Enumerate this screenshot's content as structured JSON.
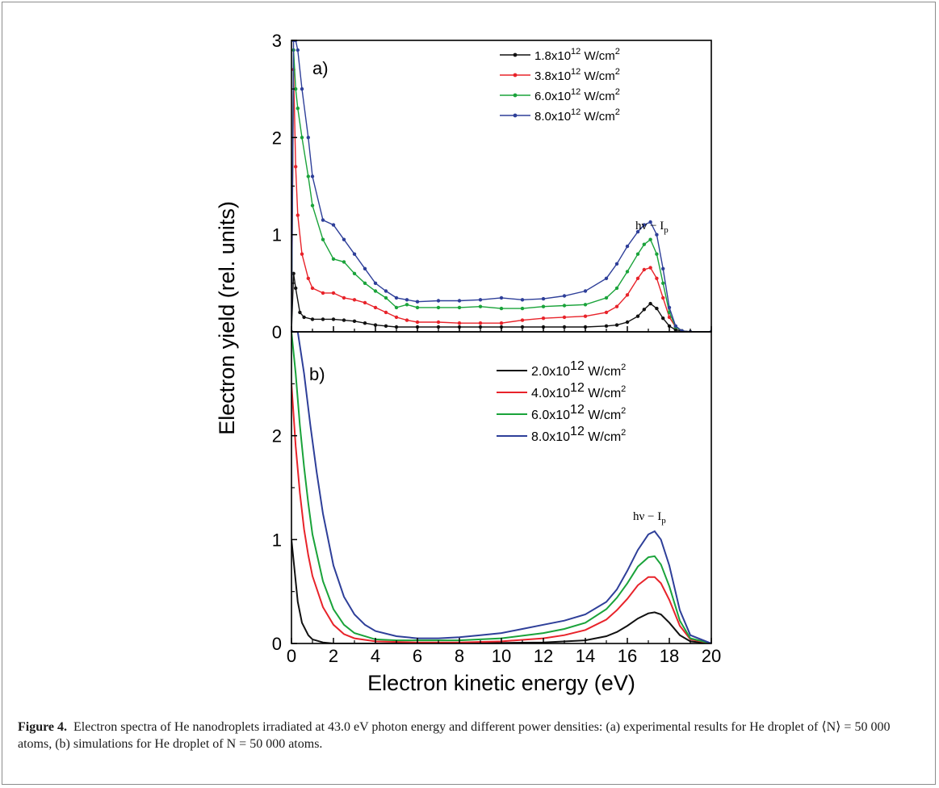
{
  "chart_data": [
    {
      "type": "line",
      "panel_label": "a)",
      "xlim": [
        0,
        20
      ],
      "ylim": [
        0,
        3
      ],
      "yticks": [
        "0",
        "1",
        "2",
        "3"
      ],
      "annotation": {
        "text": "hν − I",
        "sub": "p"
      },
      "legend_position": "top-right",
      "markers": true,
      "series": [
        {
          "name": "1.8x10",
          "exp": "12",
          "unit": " W/cm",
          "unit_exp": "2",
          "color": "#111111",
          "x": [
            0,
            0.1,
            0.2,
            0.4,
            0.6,
            1,
            1.5,
            2,
            2.5,
            3,
            3.5,
            4,
            4.5,
            5,
            6,
            7,
            8,
            9,
            10,
            11,
            12,
            13,
            14,
            15,
            15.5,
            16,
            16.5,
            16.8,
            17.1,
            17.4,
            17.7,
            18,
            18.3,
            18.6,
            19,
            20
          ],
          "y": [
            0,
            0.6,
            0.45,
            0.2,
            0.15,
            0.13,
            0.13,
            0.13,
            0.12,
            0.11,
            0.09,
            0.07,
            0.06,
            0.05,
            0.05,
            0.05,
            0.05,
            0.05,
            0.05,
            0.05,
            0.05,
            0.05,
            0.05,
            0.06,
            0.07,
            0.1,
            0.16,
            0.23,
            0.29,
            0.24,
            0.14,
            0.06,
            0.02,
            0.01,
            0,
            0
          ]
        },
        {
          "name": "3.8x10",
          "exp": "12",
          "unit": " W/cm",
          "unit_exp": "2",
          "color": "#e8232a",
          "x": [
            0,
            0.1,
            0.2,
            0.3,
            0.5,
            0.8,
            1,
            1.5,
            2,
            2.5,
            3,
            3.5,
            4,
            4.5,
            5,
            5.5,
            6,
            7,
            8,
            9,
            10,
            11,
            12,
            13,
            14,
            15,
            15.5,
            16,
            16.5,
            16.8,
            17.1,
            17.4,
            17.7,
            18,
            18.3,
            18.6,
            19,
            20
          ],
          "y": [
            0,
            2.7,
            1.7,
            1.2,
            0.8,
            0.55,
            0.45,
            0.4,
            0.4,
            0.35,
            0.33,
            0.3,
            0.25,
            0.2,
            0.15,
            0.12,
            0.1,
            0.1,
            0.09,
            0.09,
            0.09,
            0.12,
            0.14,
            0.15,
            0.16,
            0.2,
            0.26,
            0.38,
            0.55,
            0.64,
            0.66,
            0.55,
            0.35,
            0.15,
            0.05,
            0.01,
            0,
            0
          ]
        },
        {
          "name": "6.0x10",
          "exp": "12",
          "unit": " W/cm",
          "unit_exp": "2",
          "color": "#1aa33a",
          "x": [
            0,
            0.1,
            0.2,
            0.3,
            0.5,
            0.8,
            1,
            1.5,
            2,
            2.5,
            3,
            3.5,
            4,
            4.5,
            5,
            5.5,
            6,
            7,
            8,
            9,
            10,
            11,
            12,
            13,
            14,
            15,
            15.5,
            16,
            16.5,
            16.8,
            17.1,
            17.4,
            17.7,
            18,
            18.3,
            18.6,
            19,
            20
          ],
          "y": [
            0,
            2.9,
            2.5,
            2.3,
            2.0,
            1.6,
            1.3,
            0.95,
            0.75,
            0.72,
            0.6,
            0.5,
            0.42,
            0.35,
            0.25,
            0.28,
            0.25,
            0.25,
            0.25,
            0.26,
            0.24,
            0.24,
            0.26,
            0.27,
            0.28,
            0.35,
            0.45,
            0.62,
            0.8,
            0.9,
            0.95,
            0.8,
            0.5,
            0.2,
            0.05,
            0.01,
            0,
            0
          ]
        },
        {
          "name": "8.0x10",
          "exp": "12",
          "unit": " W/cm",
          "unit_exp": "2",
          "color": "#2e3f99",
          "x": [
            0,
            0.1,
            0.2,
            0.3,
            0.5,
            0.8,
            1,
            1.5,
            2,
            2.5,
            3,
            3.5,
            4,
            4.5,
            5,
            5.5,
            6,
            7,
            8,
            9,
            10,
            11,
            12,
            13,
            14,
            15,
            15.5,
            16,
            16.5,
            16.8,
            17.1,
            17.4,
            17.7,
            18,
            18.3,
            18.6,
            19,
            20
          ],
          "y": [
            0,
            3.0,
            3.0,
            2.9,
            2.5,
            2.0,
            1.6,
            1.15,
            1.1,
            0.95,
            0.8,
            0.65,
            0.5,
            0.42,
            0.35,
            0.33,
            0.31,
            0.32,
            0.32,
            0.33,
            0.35,
            0.33,
            0.34,
            0.37,
            0.42,
            0.55,
            0.7,
            0.88,
            1.03,
            1.1,
            1.13,
            1.0,
            0.65,
            0.25,
            0.06,
            0.01,
            0,
            0
          ]
        }
      ]
    },
    {
      "type": "line",
      "panel_label": "b)",
      "xlim": [
        0,
        20
      ],
      "ylim": [
        0,
        3
      ],
      "yticks": [
        "0",
        "1",
        "2"
      ],
      "annotation": {
        "text": "hν − I",
        "sub": "p"
      },
      "legend_position": "top-right",
      "markers": false,
      "series": [
        {
          "name": "2.0x10",
          "exp": "12",
          "unit": " W/cm",
          "unit_exp": "2",
          "color": "#111111",
          "x": [
            0,
            0.1,
            0.2,
            0.3,
            0.5,
            0.8,
            1,
            1.5,
            2,
            4,
            8,
            12,
            14,
            15,
            15.5,
            16,
            16.5,
            17,
            17.3,
            17.6,
            18,
            18.5,
            19,
            20
          ],
          "y": [
            1.0,
            0.8,
            0.6,
            0.4,
            0.2,
            0.08,
            0.04,
            0.01,
            0,
            0,
            0,
            0.01,
            0.03,
            0.07,
            0.11,
            0.17,
            0.24,
            0.29,
            0.3,
            0.28,
            0.2,
            0.08,
            0.02,
            0
          ]
        },
        {
          "name": "4.0x10",
          "exp": "12",
          "unit": " W/cm",
          "unit_exp": "2",
          "color": "#e8232a",
          "x": [
            0,
            0.2,
            0.4,
            0.6,
            0.8,
            1,
            1.5,
            2,
            2.5,
            3,
            4,
            6,
            8,
            10,
            12,
            13,
            14,
            15,
            15.5,
            16,
            16.5,
            17,
            17.3,
            17.6,
            18,
            18.5,
            19,
            20
          ],
          "y": [
            2.5,
            1.9,
            1.45,
            1.1,
            0.85,
            0.65,
            0.35,
            0.18,
            0.09,
            0.05,
            0.02,
            0.01,
            0.01,
            0.02,
            0.05,
            0.08,
            0.13,
            0.23,
            0.32,
            0.43,
            0.56,
            0.64,
            0.64,
            0.58,
            0.42,
            0.17,
            0.04,
            0
          ]
        },
        {
          "name": "6.0x10",
          "exp": "12",
          "unit": " W/cm",
          "unit_exp": "2",
          "color": "#1aa33a",
          "x": [
            0,
            0.2,
            0.4,
            0.6,
            0.8,
            1,
            1.5,
            2,
            2.5,
            3,
            4,
            5,
            6,
            8,
            10,
            12,
            13,
            14,
            15,
            15.5,
            16,
            16.5,
            17,
            17.3,
            17.6,
            18,
            18.5,
            19,
            20
          ],
          "y": [
            3.0,
            2.6,
            2.1,
            1.7,
            1.35,
            1.05,
            0.6,
            0.33,
            0.18,
            0.1,
            0.04,
            0.03,
            0.03,
            0.03,
            0.05,
            0.1,
            0.14,
            0.2,
            0.33,
            0.44,
            0.58,
            0.74,
            0.83,
            0.84,
            0.76,
            0.55,
            0.22,
            0.05,
            0
          ]
        },
        {
          "name": "8.0x10",
          "exp": "12",
          "unit": " W/cm",
          "unit_exp": "2",
          "color": "#2e3f99",
          "x": [
            0,
            0.3,
            0.6,
            0.9,
            1.2,
            1.5,
            2,
            2.5,
            3,
            3.5,
            4,
            5,
            6,
            7,
            8,
            9,
            10,
            11,
            12,
            13,
            14,
            15,
            15.5,
            16,
            16.5,
            17,
            17.3,
            17.6,
            18,
            18.5,
            19,
            20
          ],
          "y": [
            3.0,
            3.0,
            2.6,
            2.1,
            1.65,
            1.25,
            0.75,
            0.45,
            0.28,
            0.18,
            0.12,
            0.07,
            0.05,
            0.05,
            0.06,
            0.08,
            0.1,
            0.14,
            0.18,
            0.22,
            0.28,
            0.4,
            0.52,
            0.7,
            0.9,
            1.05,
            1.08,
            1.0,
            0.75,
            0.32,
            0.08,
            0
          ]
        }
      ]
    }
  ],
  "axes": {
    "xlabel": "Electron kinetic energy (eV)",
    "ylabel": "Electron yield (rel. units)",
    "xticks": [
      "0",
      "2",
      "4",
      "6",
      "8",
      "10",
      "12",
      "14",
      "16",
      "18",
      "20"
    ]
  },
  "caption": {
    "label": "Figure 4.",
    "text": "Electron spectra of He nanodroplets irradiated at 43.0 eV photon energy and different power densities: (a) experimental results for He droplet of ⟨N⟩ = 50 000 atoms, (b) simulations for He droplet of N = 50 000 atoms."
  }
}
